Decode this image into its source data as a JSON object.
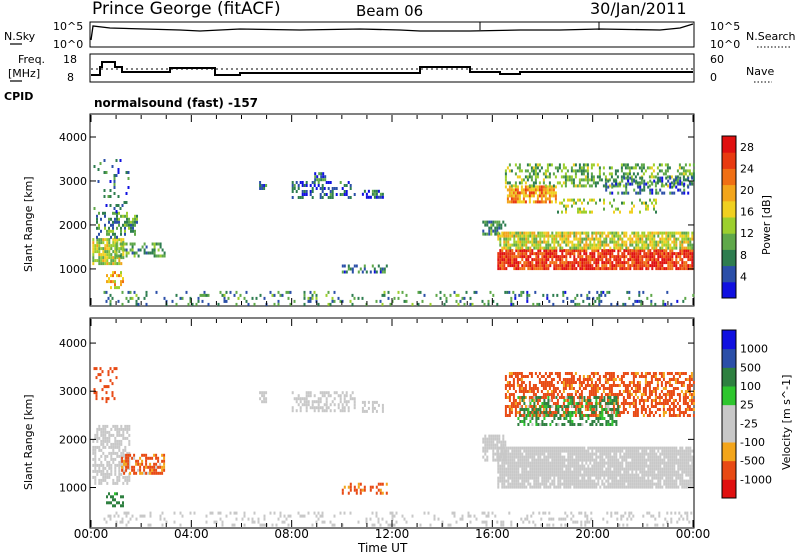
{
  "header": {
    "station": "Prince George (fitACF)",
    "beam": "Beam 06",
    "date": "30/Jan/2011"
  },
  "panels": {
    "nsky_label": "N.Sky",
    "nsky_ticks": [
      "10^5",
      "10^0"
    ],
    "nsearch_label": "N.Search",
    "nsearch_ticks": [
      "10^5",
      "10^0"
    ],
    "freq_label_1": "Freq.",
    "freq_label_2": "[MHz]",
    "freq_ticks": [
      "18",
      "8"
    ],
    "nave_label": "Nave",
    "nave_ticks": [
      "60",
      "0"
    ],
    "cpid_label": "CPID",
    "cpid_text": "normalsound (fast) -157"
  },
  "colors": {
    "power": [
      "#1010e0",
      "#2b4fa8",
      "#2e7d4f",
      "#5fa84a",
      "#9ccf2e",
      "#f0d020",
      "#f3a51b",
      "#f06f14",
      "#e83a10",
      "#e01010"
    ],
    "velocity": [
      "#e01010",
      "#e84a14",
      "#f3a51b",
      "#c8c8c8",
      "#c8c8c8",
      "#2ec62e",
      "#2e8040",
      "#2b4fa8",
      "#1010e0"
    ]
  },
  "chart_data": [
    {
      "type": "heatmap",
      "title": "Power",
      "ylabel": "Slant Range [km]",
      "xlabel": "",
      "x_ticks": [
        "00:00",
        "04:00",
        "08:00",
        "12:00",
        "16:00",
        "20:00",
        "00:00"
      ],
      "x_range_hours": [
        0,
        24
      ],
      "y_ticks": [
        1000,
        2000,
        3000,
        4000
      ],
      "ylim": [
        180,
        4500
      ],
      "colorbar": {
        "label": "Power [dB]",
        "ticks": [
          4,
          8,
          12,
          16,
          20,
          24,
          28
        ],
        "range": [
          0,
          30
        ]
      },
      "regions": [
        {
          "t0": 0.05,
          "t1": 1.3,
          "r0": 1100,
          "r1": 1700,
          "value": 14,
          "density": 0.8
        },
        {
          "t0": 0.2,
          "t1": 1.8,
          "r0": 1700,
          "r1": 2300,
          "value": 9,
          "density": 0.45
        },
        {
          "t0": 0.1,
          "t1": 1.5,
          "r0": 2300,
          "r1": 3500,
          "value": 6,
          "density": 0.12
        },
        {
          "t0": 0.9,
          "t1": 2.9,
          "r0": 1300,
          "r1": 1600,
          "value": 10,
          "density": 0.5
        },
        {
          "t0": 0.6,
          "t1": 1.3,
          "r0": 600,
          "r1": 950,
          "value": 18,
          "density": 0.45
        },
        {
          "t0": 6.7,
          "t1": 7.0,
          "r0": 2800,
          "r1": 3000,
          "value": 6,
          "density": 0.6
        },
        {
          "t0": 8.0,
          "t1": 10.5,
          "r0": 2600,
          "r1": 3000,
          "value": 5,
          "density": 0.4
        },
        {
          "t0": 10.8,
          "t1": 11.6,
          "r0": 2600,
          "r1": 2800,
          "value": 5,
          "density": 0.5
        },
        {
          "t0": 8.9,
          "t1": 9.3,
          "r0": 3000,
          "r1": 3200,
          "value": 6,
          "density": 0.5
        },
        {
          "t0": 10.0,
          "t1": 11.8,
          "r0": 900,
          "r1": 1100,
          "value": 7,
          "density": 0.45
        },
        {
          "t0": 0.5,
          "t1": 16.0,
          "r0": 200,
          "r1": 500,
          "value": 8,
          "density": 0.18
        },
        {
          "t0": 15.6,
          "t1": 16.5,
          "r0": 1800,
          "r1": 2100,
          "value": 8,
          "density": 0.6
        },
        {
          "t0": 16.2,
          "t1": 24.0,
          "r0": 1000,
          "r1": 1450,
          "value": 26,
          "density": 0.85
        },
        {
          "t0": 16.2,
          "t1": 24.0,
          "r0": 1450,
          "r1": 1850,
          "value": 15,
          "density": 0.8
        },
        {
          "t0": 16.0,
          "t1": 24.0,
          "r0": 200,
          "r1": 500,
          "value": 7,
          "density": 0.2
        },
        {
          "t0": 16.5,
          "t1": 18.5,
          "r0": 2500,
          "r1": 2900,
          "value": 20,
          "density": 0.8
        },
        {
          "t0": 16.5,
          "t1": 24.0,
          "r0": 2900,
          "r1": 3400,
          "value": 11,
          "density": 0.4
        },
        {
          "t0": 18.5,
          "t1": 22.5,
          "r0": 2300,
          "r1": 2600,
          "value": 13,
          "density": 0.35
        },
        {
          "t0": 20.5,
          "t1": 24.0,
          "r0": 2700,
          "r1": 3100,
          "value": 6,
          "density": 0.4
        }
      ]
    },
    {
      "type": "heatmap",
      "title": "Velocity",
      "ylabel": "Slant Range [km]",
      "xlabel": "Time UT",
      "x_ticks": [
        "00:00",
        "04:00",
        "08:00",
        "12:00",
        "16:00",
        "20:00",
        "00:00"
      ],
      "x_range_hours": [
        0,
        24
      ],
      "y_ticks": [
        1000,
        2000,
        3000,
        4000
      ],
      "ylim": [
        180,
        4500
      ],
      "colorbar": {
        "label": "Velocity [m s^-1]",
        "ticks": [
          1000,
          500,
          100,
          25,
          -25,
          -100,
          -500,
          -1000
        ]
      },
      "regions": [
        {
          "t0": 0.05,
          "t1": 1.5,
          "r0": 1100,
          "r1": 2300,
          "value": 0,
          "density": 0.6
        },
        {
          "t0": 1.2,
          "t1": 2.9,
          "r0": 1300,
          "r1": 1700,
          "value": -150,
          "density": 0.6
        },
        {
          "t0": 0.1,
          "t1": 1.0,
          "r0": 2800,
          "r1": 3500,
          "value": -300,
          "density": 0.2
        },
        {
          "t0": 0.6,
          "t1": 1.3,
          "r0": 600,
          "r1": 900,
          "value": 200,
          "density": 0.5
        },
        {
          "t0": 6.7,
          "t1": 7.0,
          "r0": 2800,
          "r1": 3000,
          "value": 0,
          "density": 0.7
        },
        {
          "t0": 8.0,
          "t1": 10.5,
          "r0": 2600,
          "r1": 3000,
          "value": 0,
          "density": 0.5
        },
        {
          "t0": 10.8,
          "t1": 11.6,
          "r0": 2600,
          "r1": 2800,
          "value": 0,
          "density": 0.5
        },
        {
          "t0": 10.0,
          "t1": 11.8,
          "r0": 900,
          "r1": 1100,
          "value": -200,
          "density": 0.45
        },
        {
          "t0": 0.5,
          "t1": 16.0,
          "r0": 200,
          "r1": 500,
          "value": 0,
          "density": 0.18
        },
        {
          "t0": 15.6,
          "t1": 16.5,
          "r0": 1600,
          "r1": 2100,
          "value": 0,
          "density": 0.8
        },
        {
          "t0": 16.2,
          "t1": 24.0,
          "r0": 1000,
          "r1": 1850,
          "value": 0,
          "density": 0.9
        },
        {
          "t0": 16.0,
          "t1": 24.0,
          "r0": 200,
          "r1": 500,
          "value": 0,
          "density": 0.2
        },
        {
          "t0": 16.5,
          "t1": 24.0,
          "r0": 2500,
          "r1": 3400,
          "value": -200,
          "density": 0.55
        },
        {
          "t0": 17.0,
          "t1": 21.0,
          "r0": 2300,
          "r1": 2900,
          "value": 150,
          "density": 0.4
        }
      ]
    }
  ]
}
